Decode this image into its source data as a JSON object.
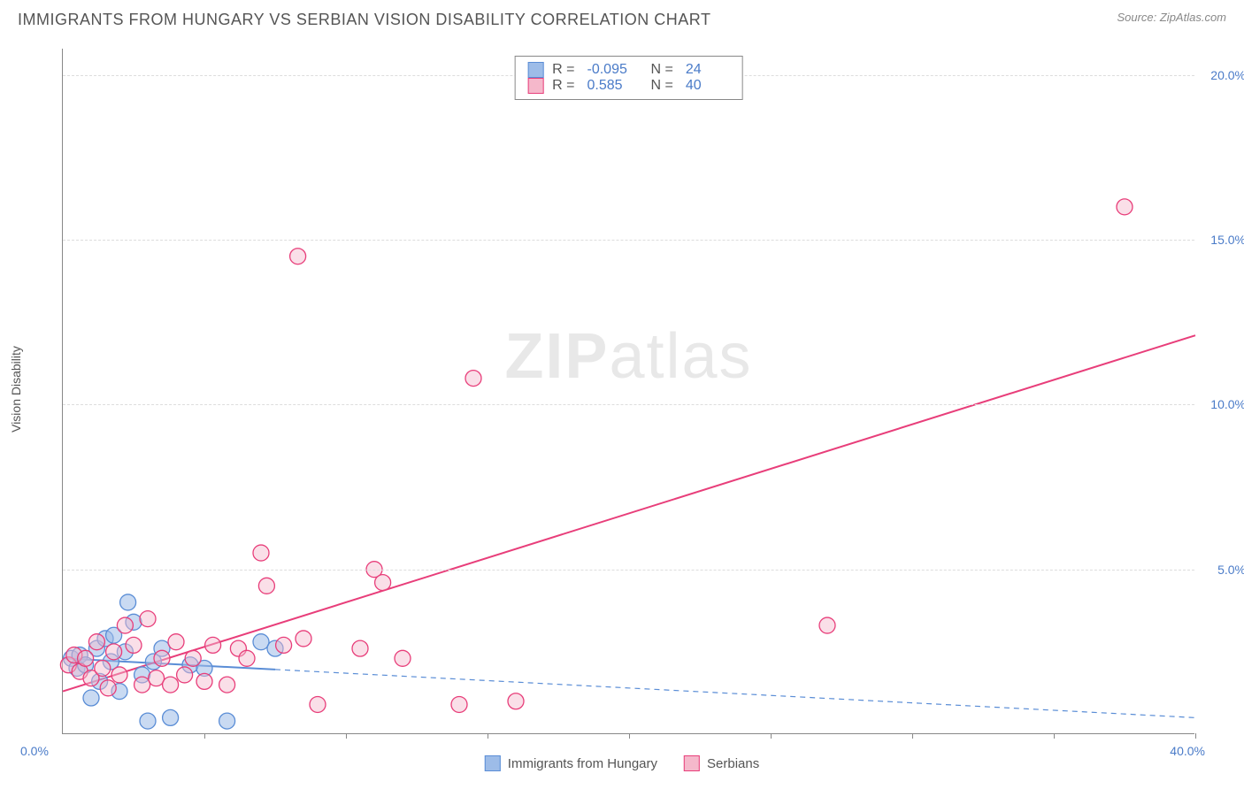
{
  "header": {
    "title": "IMMIGRANTS FROM HUNGARY VS SERBIAN VISION DISABILITY CORRELATION CHART",
    "source_label": "Source: ZipAtlas.com"
  },
  "chart": {
    "type": "scatter",
    "y_axis_label": "Vision Disability",
    "watermark_zip": "ZIP",
    "watermark_atlas": "atlas",
    "xlim": [
      0,
      40
    ],
    "ylim": [
      0,
      20.8
    ],
    "y_ticks": [
      {
        "v": 5.0,
        "label": "5.0%"
      },
      {
        "v": 10.0,
        "label": "10.0%"
      },
      {
        "v": 15.0,
        "label": "15.0%"
      },
      {
        "v": 20.0,
        "label": "20.0%"
      }
    ],
    "x_tick_positions": [
      5,
      10,
      15,
      20,
      25,
      30,
      35,
      40
    ],
    "x_origin_label": "0.0%",
    "x_max_label": "40.0%",
    "background_color": "#ffffff",
    "grid_color": "#dddddd",
    "series": [
      {
        "id": "hungary",
        "label": "Immigrants from Hungary",
        "R": "-0.095",
        "N": "24",
        "fill_color": "#9dbce8",
        "stroke_color": "#5a8dd6",
        "fill_opacity": 0.55,
        "marker_radius": 9,
        "trend": {
          "x1": 0,
          "y1": 2.3,
          "x2": 40,
          "y2": 0.5,
          "solid_until_x": 7.5,
          "color": "#5a8dd6",
          "width": 2
        },
        "points": [
          {
            "x": 0.3,
            "y": 2.3
          },
          {
            "x": 0.5,
            "y": 2.0
          },
          {
            "x": 0.6,
            "y": 2.4
          },
          {
            "x": 0.8,
            "y": 2.1
          },
          {
            "x": 1.0,
            "y": 1.1
          },
          {
            "x": 1.2,
            "y": 2.6
          },
          {
            "x": 1.3,
            "y": 1.6
          },
          {
            "x": 1.5,
            "y": 2.9
          },
          {
            "x": 1.7,
            "y": 2.2
          },
          {
            "x": 1.8,
            "y": 3.0
          },
          {
            "x": 2.0,
            "y": 1.3
          },
          {
            "x": 2.2,
            "y": 2.5
          },
          {
            "x": 2.3,
            "y": 4.0
          },
          {
            "x": 2.5,
            "y": 3.4
          },
          {
            "x": 2.8,
            "y": 1.8
          },
          {
            "x": 3.0,
            "y": 0.4
          },
          {
            "x": 3.2,
            "y": 2.2
          },
          {
            "x": 3.5,
            "y": 2.6
          },
          {
            "x": 3.8,
            "y": 0.5
          },
          {
            "x": 4.5,
            "y": 2.1
          },
          {
            "x": 5.0,
            "y": 2.0
          },
          {
            "x": 5.8,
            "y": 0.4
          },
          {
            "x": 7.0,
            "y": 2.8
          },
          {
            "x": 7.5,
            "y": 2.6
          }
        ]
      },
      {
        "id": "serbian",
        "label": "Serbians",
        "R": "0.585",
        "N": "40",
        "fill_color": "#f5b8cb",
        "stroke_color": "#e83e7a",
        "fill_opacity": 0.45,
        "marker_radius": 9,
        "trend": {
          "x1": 0,
          "y1": 1.3,
          "x2": 40,
          "y2": 12.1,
          "solid_until_x": 40,
          "color": "#e83e7a",
          "width": 2
        },
        "points": [
          {
            "x": 0.2,
            "y": 2.1
          },
          {
            "x": 0.4,
            "y": 2.4
          },
          {
            "x": 0.6,
            "y": 1.9
          },
          {
            "x": 0.8,
            "y": 2.3
          },
          {
            "x": 1.0,
            "y": 1.7
          },
          {
            "x": 1.2,
            "y": 2.8
          },
          {
            "x": 1.4,
            "y": 2.0
          },
          {
            "x": 1.6,
            "y": 1.4
          },
          {
            "x": 1.8,
            "y": 2.5
          },
          {
            "x": 2.0,
            "y": 1.8
          },
          {
            "x": 2.2,
            "y": 3.3
          },
          {
            "x": 2.5,
            "y": 2.7
          },
          {
            "x": 2.8,
            "y": 1.5
          },
          {
            "x": 3.0,
            "y": 3.5
          },
          {
            "x": 3.3,
            "y": 1.7
          },
          {
            "x": 3.5,
            "y": 2.3
          },
          {
            "x": 3.8,
            "y": 1.5
          },
          {
            "x": 4.0,
            "y": 2.8
          },
          {
            "x": 4.3,
            "y": 1.8
          },
          {
            "x": 4.6,
            "y": 2.3
          },
          {
            "x": 5.0,
            "y": 1.6
          },
          {
            "x": 5.3,
            "y": 2.7
          },
          {
            "x": 5.8,
            "y": 1.5
          },
          {
            "x": 6.2,
            "y": 2.6
          },
          {
            "x": 6.5,
            "y": 2.3
          },
          {
            "x": 7.0,
            "y": 5.5
          },
          {
            "x": 7.2,
            "y": 4.5
          },
          {
            "x": 7.8,
            "y": 2.7
          },
          {
            "x": 8.3,
            "y": 14.5
          },
          {
            "x": 8.5,
            "y": 2.9
          },
          {
            "x": 9.0,
            "y": 0.9
          },
          {
            "x": 10.5,
            "y": 2.6
          },
          {
            "x": 11.0,
            "y": 5.0
          },
          {
            "x": 11.3,
            "y": 4.6
          },
          {
            "x": 12.0,
            "y": 2.3
          },
          {
            "x": 14.0,
            "y": 0.9
          },
          {
            "x": 14.5,
            "y": 10.8
          },
          {
            "x": 16.0,
            "y": 1.0
          },
          {
            "x": 27.0,
            "y": 3.3
          },
          {
            "x": 37.5,
            "y": 16.0
          }
        ]
      }
    ],
    "legend_top": {
      "r_label": "R =",
      "n_label": "N ="
    },
    "legend_bottom_labels": [
      "Immigrants from Hungary",
      "Serbians"
    ]
  }
}
